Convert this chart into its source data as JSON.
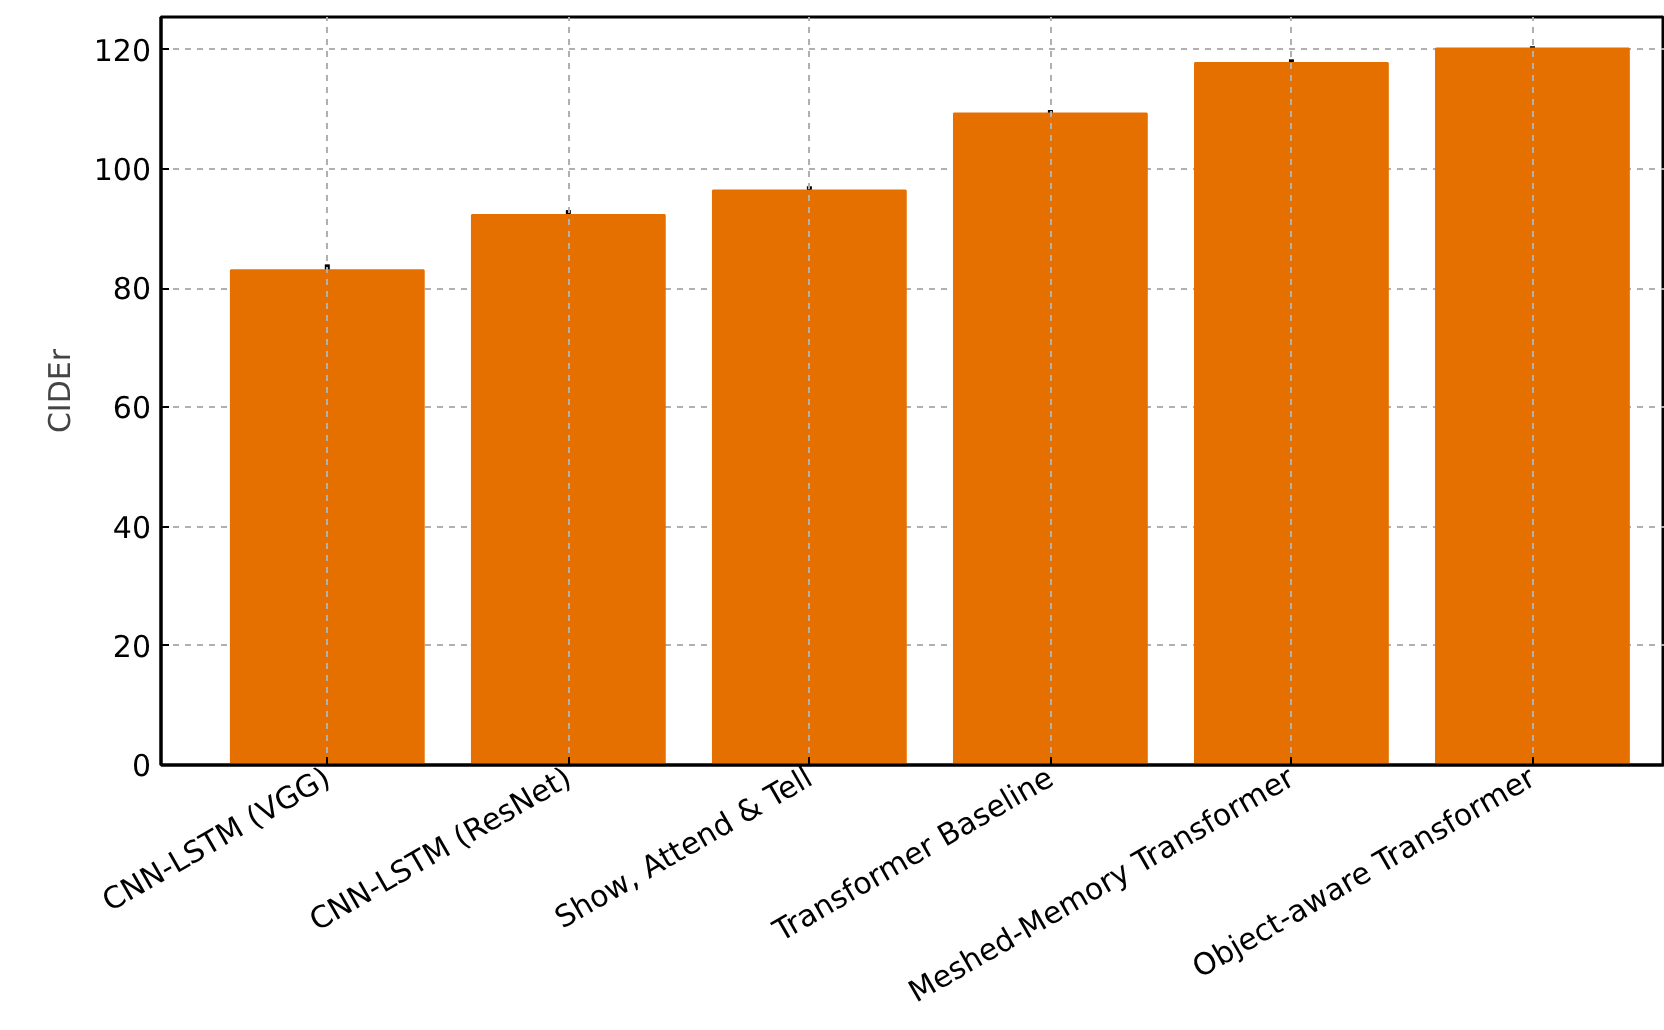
{
  "chart_data": {
    "type": "bar",
    "ylabel": "CIDEr",
    "categories": [
      "CNN-LSTM (VGG)",
      "CNN-LSTM (ResNet)",
      "Show, Attend & Tell",
      "Transformer Baseline",
      "Meshed-Memory Transformer",
      "Object-aware Transformer"
    ],
    "values": [
      83,
      92.3,
      96.4,
      109.3,
      117.8,
      120.2
    ],
    "errors": [
      1,
      0.8,
      0.7,
      0.6,
      0.6,
      0.4
    ],
    "color": "#e57000",
    "ylim": [
      0,
      125.5
    ],
    "yticks": [
      0,
      20,
      40,
      60,
      80,
      100,
      120
    ],
    "grid": true
  }
}
